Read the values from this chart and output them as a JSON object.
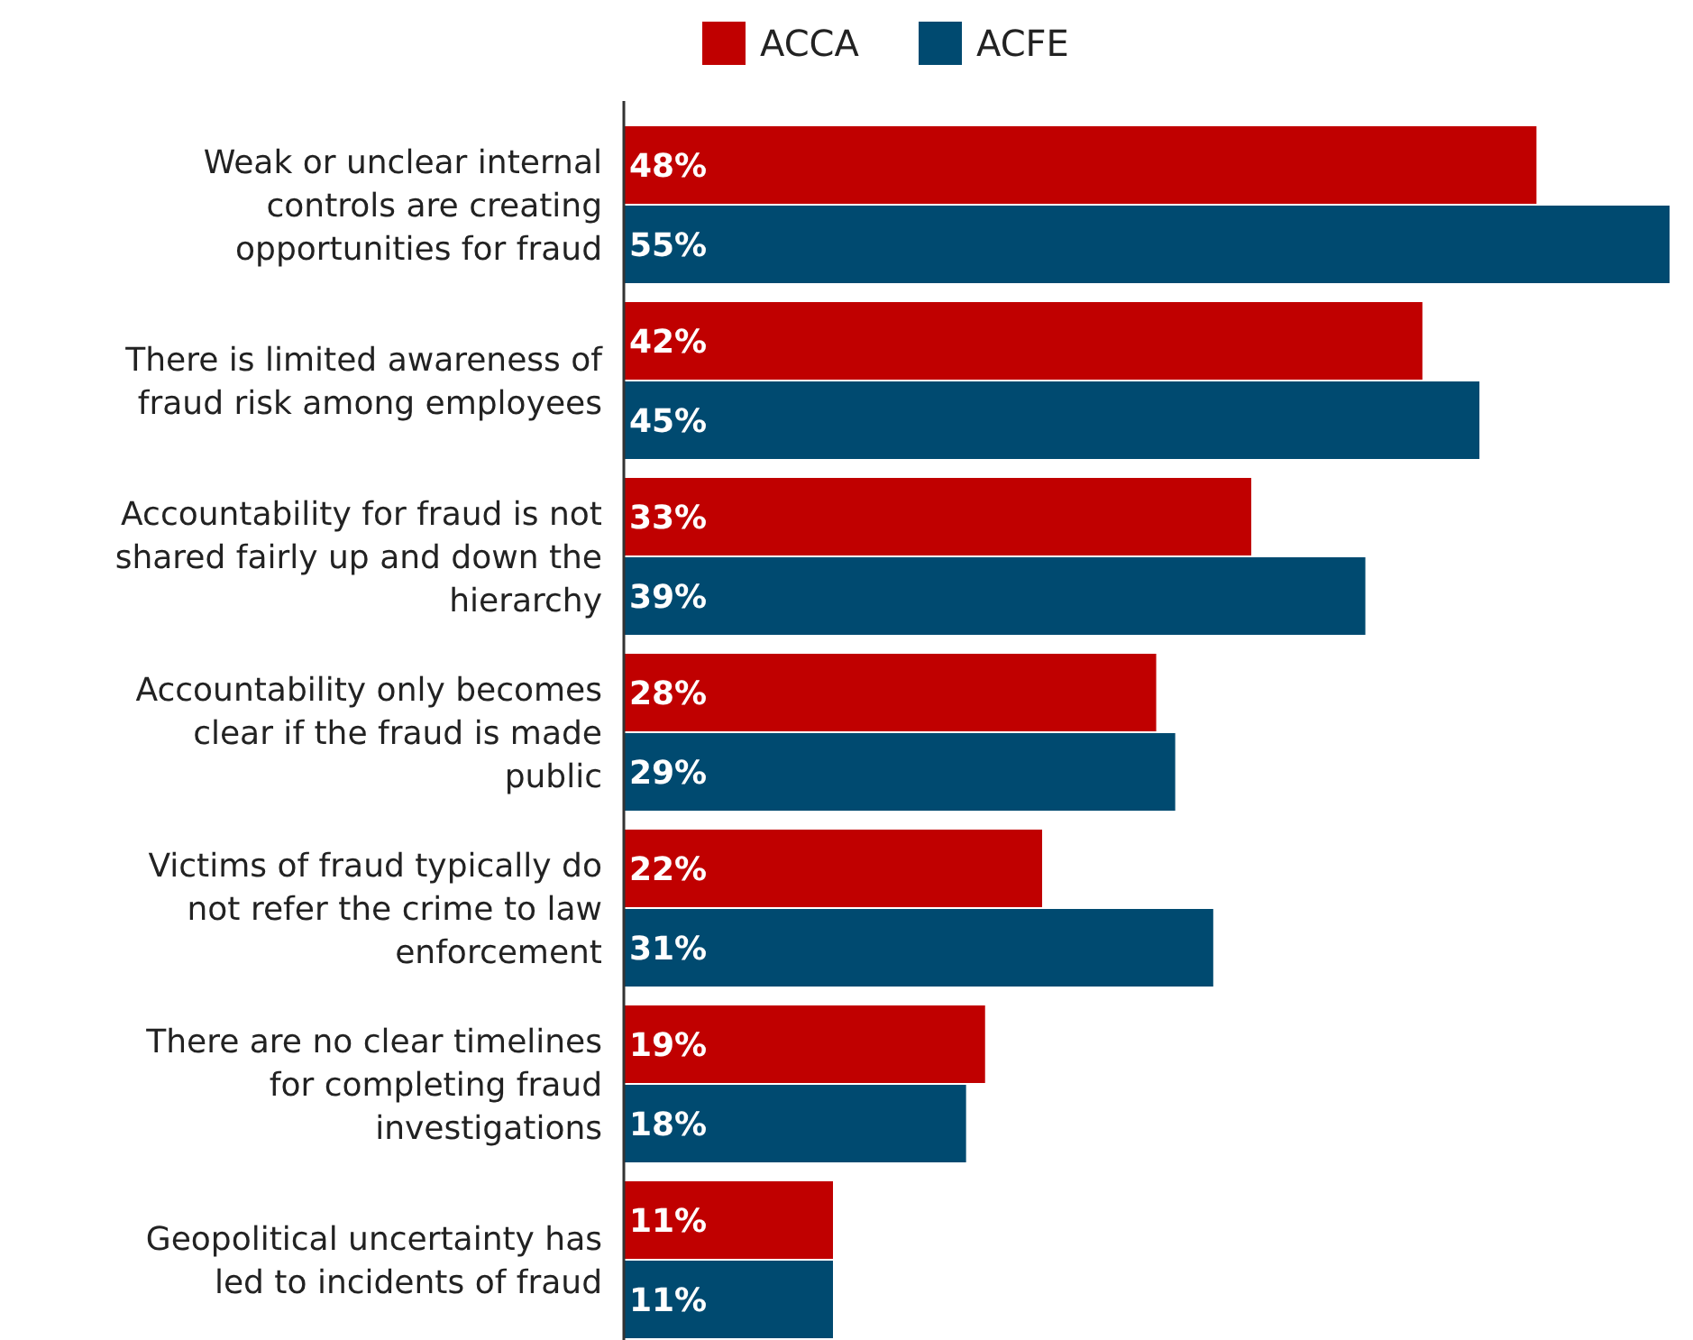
{
  "chart_data": {
    "type": "bar",
    "orientation": "horizontal",
    "categories": [
      "Weak or unclear internal controls are creating opportunities for fraud",
      "There is limited awareness of fraud risk among employees",
      "Accountability for fraud is not shared fairly up and down the hierarchy",
      "Accountability only becomes clear if the fraud is made public",
      "Victims of fraud typically do not refer the crime to law enforcement",
      "There are no clear timelines for completing fraud investigations",
      "Geopolitical uncertainty has led to incidents of fraud"
    ],
    "series": [
      {
        "name": "ACCA",
        "color": "#c00000",
        "values": [
          48,
          42,
          33,
          28,
          22,
          19,
          11
        ],
        "value_labels": [
          "48%",
          "42%",
          "33%",
          "28%",
          "22%",
          "19%",
          "11%"
        ]
      },
      {
        "name": "ACFE",
        "color": "#004a70",
        "values": [
          55,
          45,
          39,
          29,
          31,
          18,
          11
        ],
        "value_labels": [
          "55%",
          "45%",
          "39%",
          "29%",
          "31%",
          "18%",
          "11%"
        ]
      }
    ],
    "legend": "top"
  }
}
